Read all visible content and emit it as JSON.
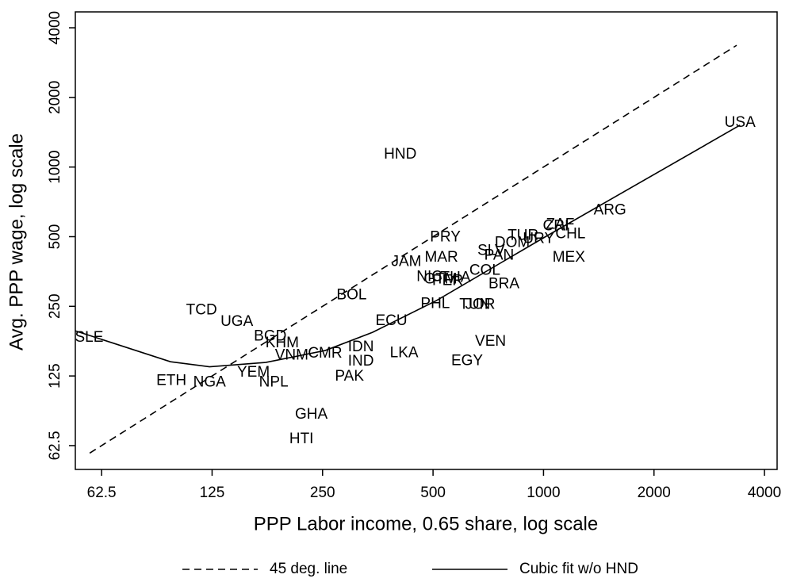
{
  "chart_data": {
    "type": "scatter",
    "xlabel": "PPP Labor income, 0.65 share, log scale",
    "ylabel": "Avg. PPP wage, log scale",
    "xscale": "log",
    "yscale": "log",
    "xlim": [
      53,
      4330
    ],
    "ylim": [
      49.3,
      4685
    ],
    "xticks": [
      62.5,
      125,
      250,
      500,
      1000,
      2000,
      4000
    ],
    "yticks": [
      62.5,
      125,
      250,
      500,
      1000,
      2000,
      4000
    ],
    "points": {
      "labels": [
        "SLE",
        "ETH",
        "NGA",
        "TCD",
        "UGA",
        "BGD",
        "KHM",
        "VNM",
        "CMR",
        "YEM",
        "NPL",
        "BOL",
        "HND",
        "GHA",
        "HTI",
        "IDN",
        "IND",
        "PAK",
        "ECU",
        "LKA",
        "JAM",
        "PRY",
        "MAR",
        "NIC",
        "GTM",
        "PER",
        "THA",
        "COL",
        "BRA",
        "PHL",
        "TUN",
        "JOR",
        "VEN",
        "EGY",
        "DOM",
        "PAN",
        "SLV",
        "URY",
        "TUR",
        "CRI",
        "ZAF",
        "CHL",
        "MEX",
        "ARG",
        "USA"
      ],
      "x": [
        57.8,
        96.8,
        123,
        117,
        146,
        180,
        194,
        206,
        254,
        162,
        184,
        300,
        407,
        233,
        219,
        318,
        318,
        296,
        385,
        417,
        423,
        540,
        527,
        489,
        524,
        548,
        576,
        692,
        780,
        507,
        650,
        672,
        717,
        619,
        822,
        757,
        720,
        970,
        880,
        1080,
        1110,
        1184,
        1172,
        1517,
        3431
      ],
      "y": [
        183,
        119,
        117,
        240,
        214,
        185,
        173,
        153,
        156,
        129,
        117,
        279,
        1133,
        85,
        66.6,
        166,
        144,
        124,
        216,
        157,
        389,
        497,
        405,
        334,
        327,
        321,
        332,
        356,
        312,
        256,
        254,
        254,
        176,
        145,
        470,
        413,
        433,
        489,
        504,
        555,
        562,
        511,
        405,
        648,
        1553
      ]
    },
    "series": [
      {
        "name": "45 deg. line",
        "color": "#000000",
        "dash": true,
        "x": [
          58,
          3360
        ],
        "y": [
          58,
          3360
        ]
      },
      {
        "name": "Cubic fit w/o HND",
        "color": "#000000",
        "dash": false,
        "x": [
          52.9,
          96.3,
          123,
          175,
          254,
          342,
          509,
          1006,
          3431
        ],
        "y": [
          196,
          144,
          137,
          143,
          161,
          193,
          264,
          497,
          1517
        ]
      }
    ]
  }
}
